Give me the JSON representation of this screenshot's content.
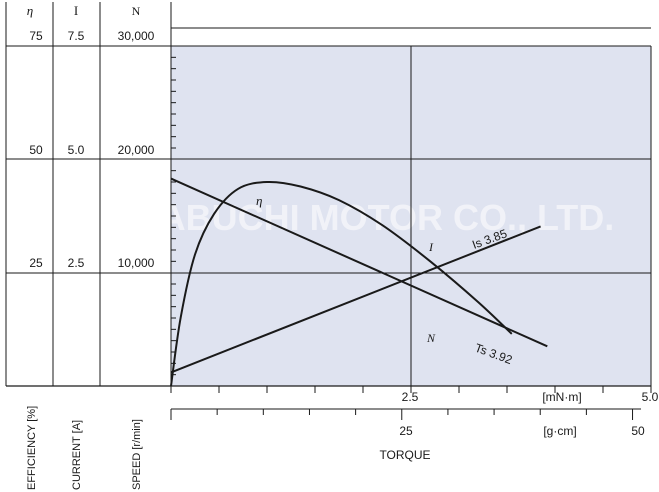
{
  "chart_data": {
    "type": "line",
    "title": "",
    "watermark": "MABUCHI MOTOR CO., LTD.",
    "colors": {
      "plot_bg": "#dfe3f0",
      "line": "#1a1a1a",
      "grid": "#1a1a1a"
    },
    "left_scales": [
      {
        "symbol": "η",
        "label": "EFFICIENCY [%]",
        "ticks": [
          "75",
          "50",
          "25"
        ],
        "max": 75
      },
      {
        "symbol": "I",
        "label": "CURRENT [A]",
        "ticks": [
          "7.5",
          "5.0",
          "2.5"
        ],
        "max": 7.5
      },
      {
        "symbol": "N",
        "label": "SPEED [r/min]",
        "ticks": [
          "30,000",
          "20,000",
          "10,000"
        ],
        "max": 30000
      }
    ],
    "x_axis": {
      "label": "TORQUE",
      "primary_unit": "[mN·m]",
      "primary_ticks": [
        "2.5",
        "5.0"
      ],
      "primary_max": 5.0,
      "secondary_unit": "[g·cm]",
      "secondary_ticks": [
        "25",
        "50"
      ],
      "secondary_max": 50
    },
    "series": [
      {
        "name": "N",
        "scale": "speed",
        "x": [
          0,
          3.92
        ],
        "y": [
          18300,
          3500
        ]
      },
      {
        "name": "I",
        "scale": "current",
        "x": [
          0,
          3.85
        ],
        "y": [
          0.3,
          3.52
        ]
      },
      {
        "name": "η",
        "scale": "efficiency",
        "x": [
          0,
          0.1,
          0.25,
          0.45,
          0.7,
          1.0,
          1.35,
          1.75,
          2.2,
          2.7,
          3.2,
          3.55
        ],
        "y": [
          0,
          15,
          29,
          38,
          43.5,
          45,
          44,
          41,
          35.5,
          27.5,
          18.5,
          11.5
        ]
      }
    ],
    "annotations": [
      {
        "text": "Is 3.85"
      },
      {
        "text": "Ts 3.92"
      }
    ]
  }
}
